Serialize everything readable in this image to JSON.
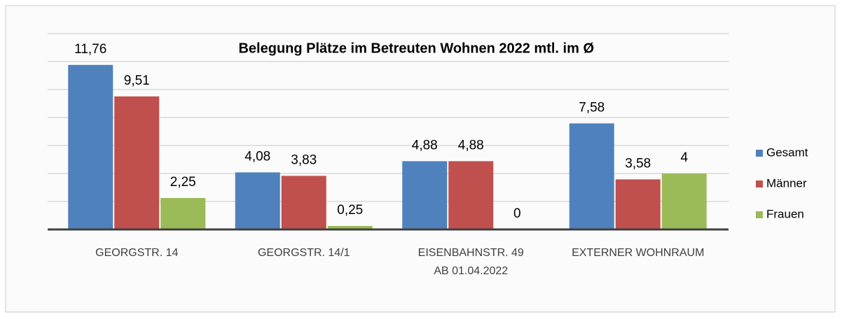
{
  "chart_data": {
    "type": "bar",
    "title": "Belegung Plätze im Betreuten Wohnen 2022 mtl. im Ø",
    "categories": [
      "GEORGSTR. 14",
      "GEORGSTR. 14/1",
      "EISENBAHNSTR. 49\nAB 01.04.2022",
      "EXTERNER WOHNRAUM"
    ],
    "series": [
      {
        "name": "Gesamt",
        "color": "#4f81bd",
        "values": [
          11.76,
          4.08,
          4.88,
          7.58
        ],
        "value_labels": [
          "11,76",
          "4,08",
          "4,88",
          "7,58"
        ]
      },
      {
        "name": "Männer",
        "color": "#c0504d",
        "values": [
          9.51,
          3.83,
          4.88,
          3.58
        ],
        "value_labels": [
          "9,51",
          "3,83",
          "4,88",
          "3,58"
        ]
      },
      {
        "name": "Frauen",
        "color": "#9bbb59",
        "values": [
          2.25,
          0.25,
          0,
          4
        ],
        "value_labels": [
          "2,25",
          "0,25",
          "0",
          "4"
        ]
      }
    ],
    "ylim": [
      0,
      14
    ],
    "yticks": [
      0,
      2,
      4,
      6,
      8,
      10,
      12,
      14
    ],
    "grid": true,
    "legend": "right"
  }
}
